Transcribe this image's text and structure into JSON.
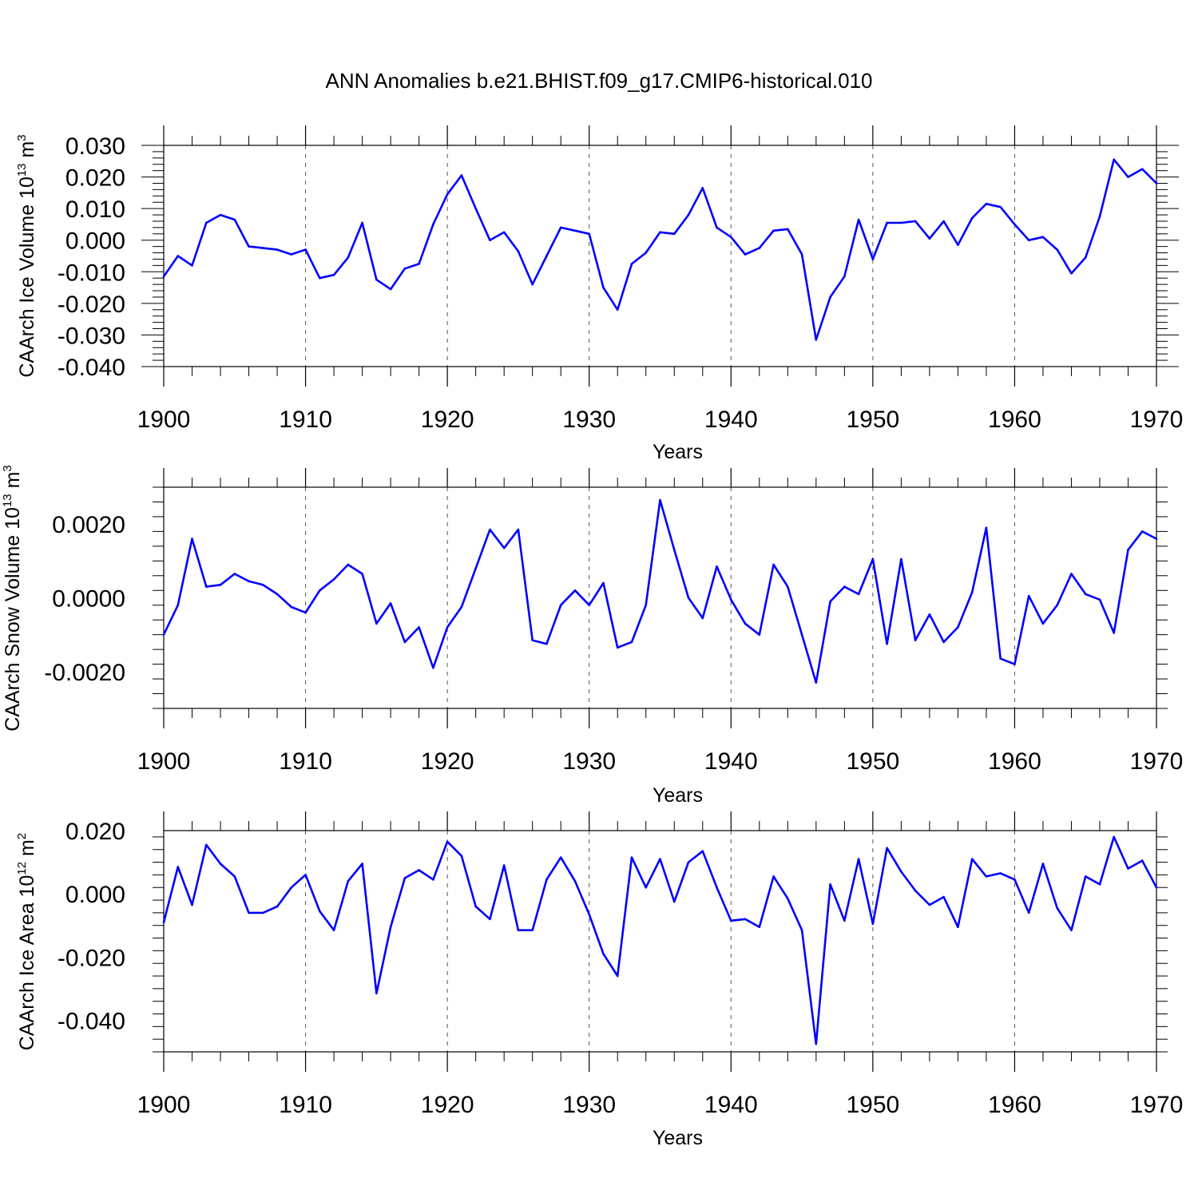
{
  "title": "ANN Anomalies b.e21.BHIST.f09_g17.CMIP6-historical.010",
  "colors": {
    "series": "#0000ff",
    "axis": "#000000",
    "grid": "#555555"
  },
  "chart_data": [
    {
      "type": "line",
      "title": "ANN Anomalies b.e21.BHIST.f09_g17.CMIP6-historical.010",
      "xlabel": "Years",
      "ylabel_prefix": "CAArch Ice Volume 10",
      "ylabel_exp": "13",
      "ylabel_unit": " m",
      "ylabel_unit_exp": "3",
      "xlim": [
        1900,
        1970
      ],
      "ylim": [
        -0.04,
        0.03
      ],
      "xticks": [
        1900,
        1910,
        1920,
        1930,
        1940,
        1950,
        1960,
        1970
      ],
      "xtick_labels": [
        "1900",
        "1910",
        "1920",
        "1930",
        "1940",
        "1950",
        "1960",
        "1970"
      ],
      "yticks": [
        -0.04,
        -0.03,
        -0.02,
        -0.01,
        0.0,
        0.01,
        0.02,
        0.03
      ],
      "ytick_labels": [
        "-0.040",
        "-0.030",
        "-0.020",
        "-0.010",
        "0.000",
        "0.010",
        "0.020",
        "0.030"
      ],
      "grid": "vertical dashed at decades",
      "x_start": 1900,
      "values": [
        -0.0115,
        -0.005,
        -0.008,
        0.0055,
        0.008,
        0.0065,
        -0.002,
        -0.0025,
        -0.003,
        -0.0045,
        -0.003,
        -0.012,
        -0.011,
        -0.0055,
        0.0055,
        -0.0125,
        -0.0155,
        -0.009,
        -0.0075,
        0.005,
        0.0145,
        0.0205,
        0.01,
        0.0,
        0.0025,
        -0.0035,
        -0.014,
        -0.005,
        0.004,
        0.003,
        0.002,
        -0.015,
        -0.022,
        -0.0075,
        -0.004,
        0.0025,
        0.002,
        0.008,
        0.0165,
        0.004,
        0.001,
        -0.0045,
        -0.0025,
        0.003,
        0.0035,
        -0.0045,
        -0.0315,
        -0.018,
        -0.0115,
        0.0065,
        -0.006,
        0.0055,
        0.0055,
        0.006,
        0.0005,
        0.006,
        -0.0015,
        0.007,
        0.0115,
        0.0105,
        0.005,
        0.0,
        0.001,
        -0.003,
        -0.0105,
        -0.0055,
        0.0075,
        0.0255,
        0.02,
        0.0225,
        0.018
      ]
    },
    {
      "type": "line",
      "xlabel": "Years",
      "ylabel_prefix": "CAArch Snow Volume 10",
      "ylabel_exp": "13",
      "ylabel_unit": " m",
      "ylabel_unit_exp": "3",
      "xlim": [
        1900,
        1970
      ],
      "ylim": [
        -0.003,
        0.003
      ],
      "xticks": [
        1900,
        1910,
        1920,
        1930,
        1940,
        1950,
        1960,
        1970
      ],
      "xtick_labels": [
        "1900",
        "1910",
        "1920",
        "1930",
        "1940",
        "1950",
        "1960",
        "1970"
      ],
      "yticks": [
        -0.002,
        0.0,
        0.002
      ],
      "ytick_labels": [
        "-0.0020",
        "0.0000",
        "0.0020"
      ],
      "grid": "vertical dashed at decades",
      "x_start": 1900,
      "values": [
        -0.001,
        -0.0002,
        0.0016,
        0.0003,
        0.00035,
        0.00065,
        0.00045,
        0.00035,
        0.0001,
        -0.00025,
        -0.0004,
        0.0002,
        0.0005,
        0.0009,
        0.00065,
        -0.0007,
        -0.00015,
        -0.0012,
        -0.0008,
        -0.0019,
        -0.0008,
        -0.00025,
        0.0008,
        0.00185,
        0.00135,
        0.00185,
        -0.00115,
        -0.00125,
        -0.0002,
        0.0002,
        -0.0002,
        0.0004,
        -0.00135,
        -0.0012,
        -0.0002,
        0.00265,
        0.0013,
        0.0,
        -0.00055,
        0.00085,
        -5e-05,
        -0.0007,
        -0.001,
        0.0009,
        0.0003,
        -0.001,
        -0.0023,
        -0.0001,
        0.0003,
        0.0001,
        0.00105,
        -0.00125,
        0.00105,
        -0.00115,
        -0.00045,
        -0.0012,
        -0.0008,
        0.00015,
        0.0019,
        -0.00165,
        -0.0018,
        5e-05,
        -0.0007,
        -0.0002,
        0.00065,
        0.0001,
        -5e-05,
        -0.00095,
        0.0013,
        0.0018,
        0.0016
      ]
    },
    {
      "type": "line",
      "xlabel": "Years",
      "ylabel_prefix": "CAArch Ice Area 10",
      "ylabel_exp": "12",
      "ylabel_unit": " m",
      "ylabel_unit_exp": "2",
      "xlim": [
        1900,
        1970
      ],
      "ylim": [
        -0.05,
        0.02
      ],
      "xticks": [
        1900,
        1910,
        1920,
        1930,
        1940,
        1950,
        1960,
        1970
      ],
      "xtick_labels": [
        "1900",
        "1910",
        "1920",
        "1930",
        "1940",
        "1950",
        "1960",
        "1970"
      ],
      "yticks": [
        -0.04,
        -0.02,
        0.0,
        0.02
      ],
      "ytick_labels": [
        "-0.040",
        "-0.020",
        "0.000",
        "0.020"
      ],
      "grid": "vertical dashed at decades",
      "x_start": 1900,
      "values": [
        -0.009,
        0.0085,
        -0.0035,
        0.0155,
        0.0095,
        0.0055,
        -0.006,
        -0.006,
        -0.004,
        0.002,
        0.006,
        -0.0055,
        -0.0115,
        0.004,
        0.0095,
        -0.0315,
        -0.0105,
        0.005,
        0.0075,
        0.0045,
        0.0165,
        0.012,
        -0.004,
        -0.008,
        0.009,
        -0.0115,
        -0.0115,
        0.0045,
        0.0115,
        0.004,
        -0.0065,
        -0.019,
        -0.026,
        0.0115,
        0.002,
        0.011,
        -0.0025,
        0.01,
        0.0135,
        0.002,
        -0.0085,
        -0.008,
        -0.0105,
        0.0055,
        -0.0015,
        -0.0115,
        -0.0475,
        0.003,
        -0.0085,
        0.011,
        -0.0095,
        0.0145,
        0.007,
        0.001,
        -0.0035,
        -0.001,
        -0.0105,
        0.011,
        0.0055,
        0.0065,
        0.0045,
        -0.006,
        0.0095,
        -0.0045,
        -0.0115,
        0.0055,
        0.003,
        0.018,
        0.008,
        0.0105,
        0.002
      ]
    }
  ]
}
